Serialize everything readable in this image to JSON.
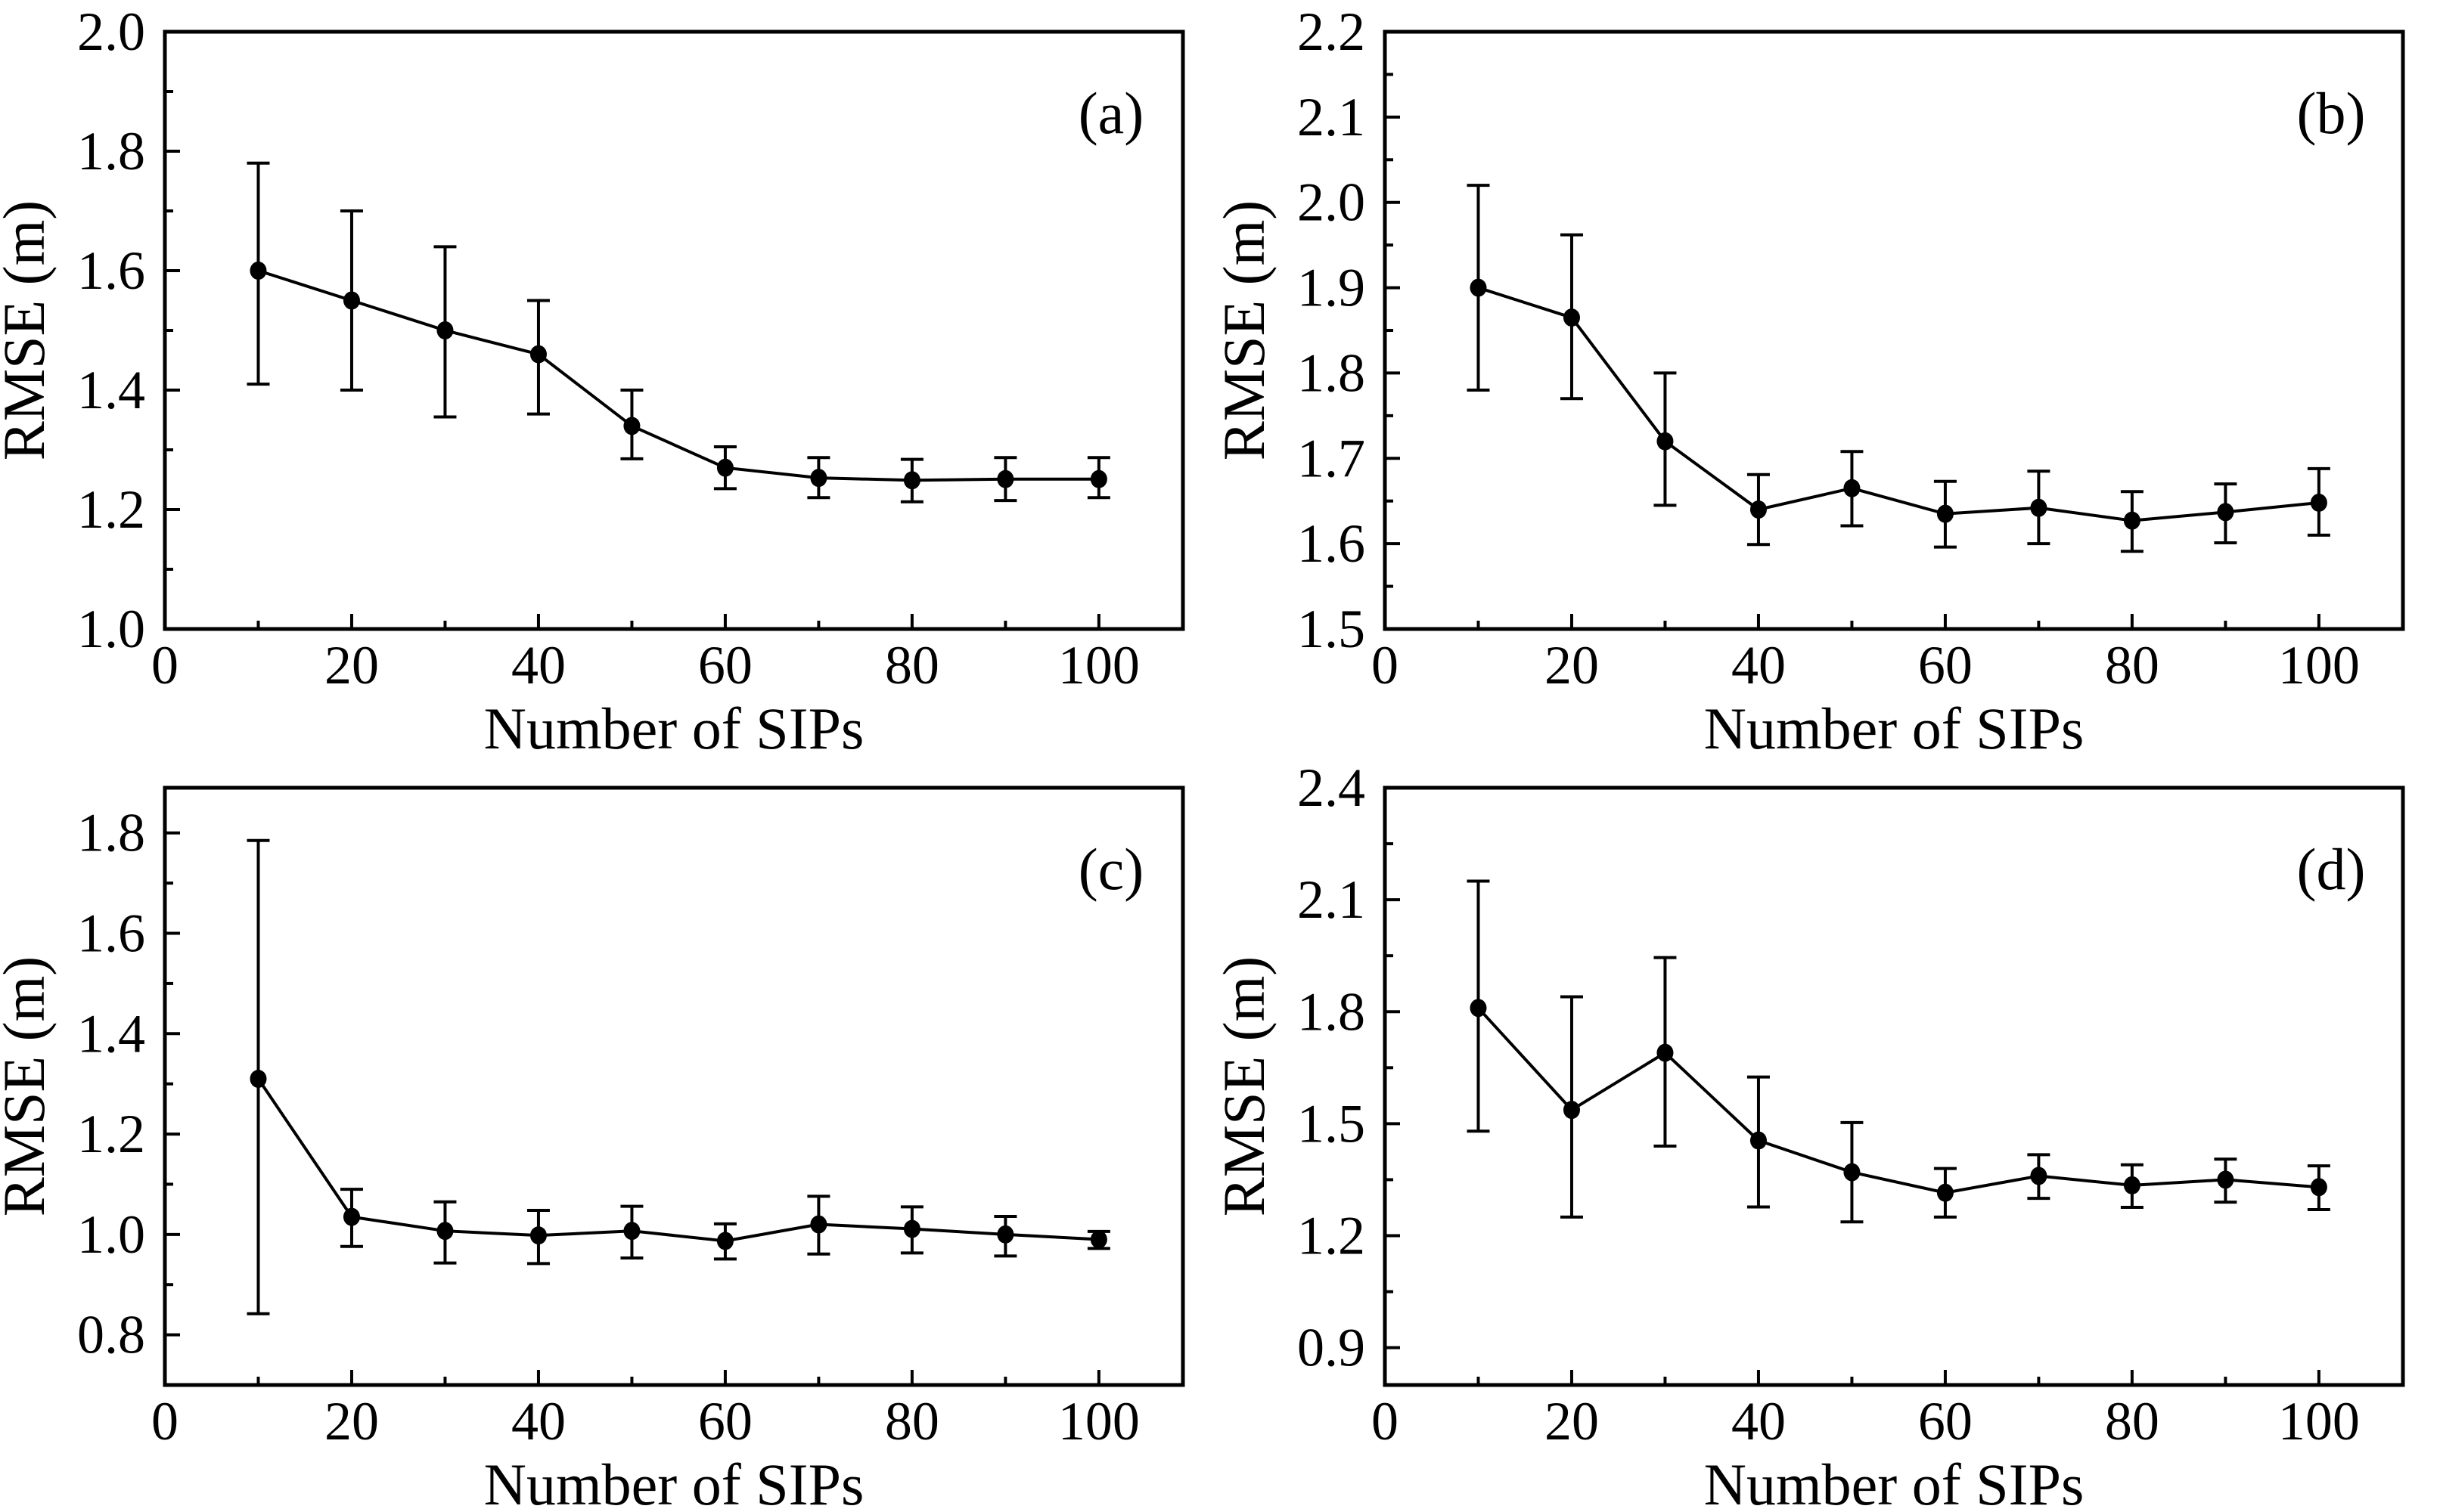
{
  "figure": {
    "title": "",
    "xlabel": "Number of SIPs",
    "ylabel": "RMSE (m)",
    "colors": {
      "foreground": "#000000",
      "background": "#ffffff"
    }
  },
  "chart_data": [
    {
      "type": "line",
      "panel": "a",
      "panel_label": "(a)",
      "xlabel": "Number of SIPs",
      "ylabel": "RMSE (m)",
      "legend": "none",
      "grid": false,
      "marker": "filled-circle",
      "error_bars": true,
      "x": [
        10,
        20,
        30,
        40,
        50,
        60,
        70,
        80,
        90,
        100
      ],
      "y": [
        1.6,
        1.55,
        1.5,
        1.46,
        1.34,
        1.27,
        1.253,
        1.249,
        1.251,
        1.251
      ],
      "y_upper": [
        1.78,
        1.7,
        1.64,
        1.55,
        1.4,
        1.305,
        1.287,
        1.284,
        1.287,
        1.287
      ],
      "y_lower": [
        1.41,
        1.4,
        1.355,
        1.36,
        1.285,
        1.235,
        1.22,
        1.213,
        1.215,
        1.22
      ],
      "xlim": [
        0,
        109
      ],
      "ylim": [
        1.0,
        2.0
      ],
      "x_major_ticks": [
        0,
        20,
        40,
        60,
        80,
        100
      ],
      "x_minor_ticks": [
        10,
        30,
        50,
        70,
        90
      ],
      "y_major_ticks": [
        1.0,
        1.2,
        1.4,
        1.6,
        1.8,
        2.0
      ],
      "y_minor_ticks": [
        1.1,
        1.3,
        1.5,
        1.7,
        1.9
      ],
      "y_tick_decimals": 1
    },
    {
      "type": "line",
      "panel": "b",
      "panel_label": "(b)",
      "xlabel": "Number of SIPs",
      "ylabel": "RMSE (m)",
      "legend": "none",
      "grid": false,
      "marker": "filled-circle",
      "error_bars": true,
      "x": [
        10,
        20,
        30,
        40,
        50,
        60,
        70,
        80,
        90,
        100
      ],
      "y": [
        1.9,
        1.865,
        1.72,
        1.64,
        1.665,
        1.635,
        1.642,
        1.627,
        1.637,
        1.648
      ],
      "y_upper": [
        2.02,
        1.962,
        1.8,
        1.681,
        1.708,
        1.673,
        1.685,
        1.661,
        1.67,
        1.688
      ],
      "y_lower": [
        1.78,
        1.77,
        1.645,
        1.599,
        1.621,
        1.596,
        1.6,
        1.591,
        1.601,
        1.61
      ],
      "xlim": [
        0,
        109
      ],
      "ylim": [
        1.5,
        2.2
      ],
      "x_major_ticks": [
        0,
        20,
        40,
        60,
        80,
        100
      ],
      "x_minor_ticks": [
        10,
        30,
        50,
        70,
        90
      ],
      "y_major_ticks": [
        1.5,
        1.6,
        1.7,
        1.8,
        1.9,
        2.0,
        2.1,
        2.2
      ],
      "y_minor_ticks": [
        1.55,
        1.65,
        1.75,
        1.85,
        1.95,
        2.05,
        2.15
      ],
      "y_tick_decimals": 1
    },
    {
      "type": "line",
      "panel": "c",
      "panel_label": "(c)",
      "xlabel": "Number of SIPs",
      "ylabel": "RMSE (m)",
      "legend": "none",
      "grid": false,
      "marker": "filled-circle",
      "error_bars": true,
      "x": [
        10,
        20,
        30,
        40,
        50,
        60,
        70,
        80,
        90,
        100
      ],
      "y": [
        1.31,
        1.035,
        1.007,
        0.998,
        1.007,
        0.987,
        1.02,
        1.011,
        1.0,
        0.99
      ],
      "y_upper": [
        1.785,
        1.09,
        1.065,
        1.048,
        1.056,
        1.021,
        1.076,
        1.055,
        1.036,
        1.006
      ],
      "y_lower": [
        0.842,
        0.976,
        0.943,
        0.942,
        0.953,
        0.951,
        0.961,
        0.963,
        0.957,
        0.972
      ],
      "xlim": [
        0,
        109
      ],
      "ylim": [
        0.7,
        1.89
      ],
      "x_major_ticks": [
        0,
        20,
        40,
        60,
        80,
        100
      ],
      "x_minor_ticks": [
        10,
        30,
        50,
        70,
        90
      ],
      "y_major_ticks": [
        0.8,
        1.0,
        1.2,
        1.4,
        1.6,
        1.8
      ],
      "y_minor_ticks": [
        0.9,
        1.1,
        1.3,
        1.5,
        1.7
      ],
      "y_tick_decimals": 1
    },
    {
      "type": "line",
      "panel": "d",
      "panel_label": "(d)",
      "xlabel": "Number of SIPs",
      "ylabel": "RMSE (m)",
      "legend": "none",
      "grid": false,
      "marker": "filled-circle",
      "error_bars": true,
      "x": [
        10,
        20,
        30,
        40,
        50,
        60,
        70,
        80,
        90,
        100
      ],
      "y": [
        1.81,
        1.537,
        1.69,
        1.455,
        1.37,
        1.315,
        1.36,
        1.335,
        1.35,
        1.33
      ],
      "y_upper": [
        2.15,
        1.84,
        1.945,
        1.625,
        1.503,
        1.38,
        1.417,
        1.39,
        1.405,
        1.387
      ],
      "y_lower": [
        1.48,
        1.25,
        1.44,
        1.277,
        1.237,
        1.25,
        1.3,
        1.276,
        1.29,
        1.27
      ],
      "xlim": [
        0,
        109
      ],
      "ylim": [
        0.8,
        2.4
      ],
      "x_major_ticks": [
        0,
        20,
        40,
        60,
        80,
        100
      ],
      "x_minor_ticks": [
        10,
        30,
        50,
        70,
        90
      ],
      "y_major_ticks": [
        0.9,
        1.2,
        1.5,
        1.8,
        2.1,
        2.4
      ],
      "y_minor_ticks": [
        1.05,
        1.35,
        1.65,
        1.95,
        2.25
      ],
      "y_tick_decimals": 1
    }
  ]
}
